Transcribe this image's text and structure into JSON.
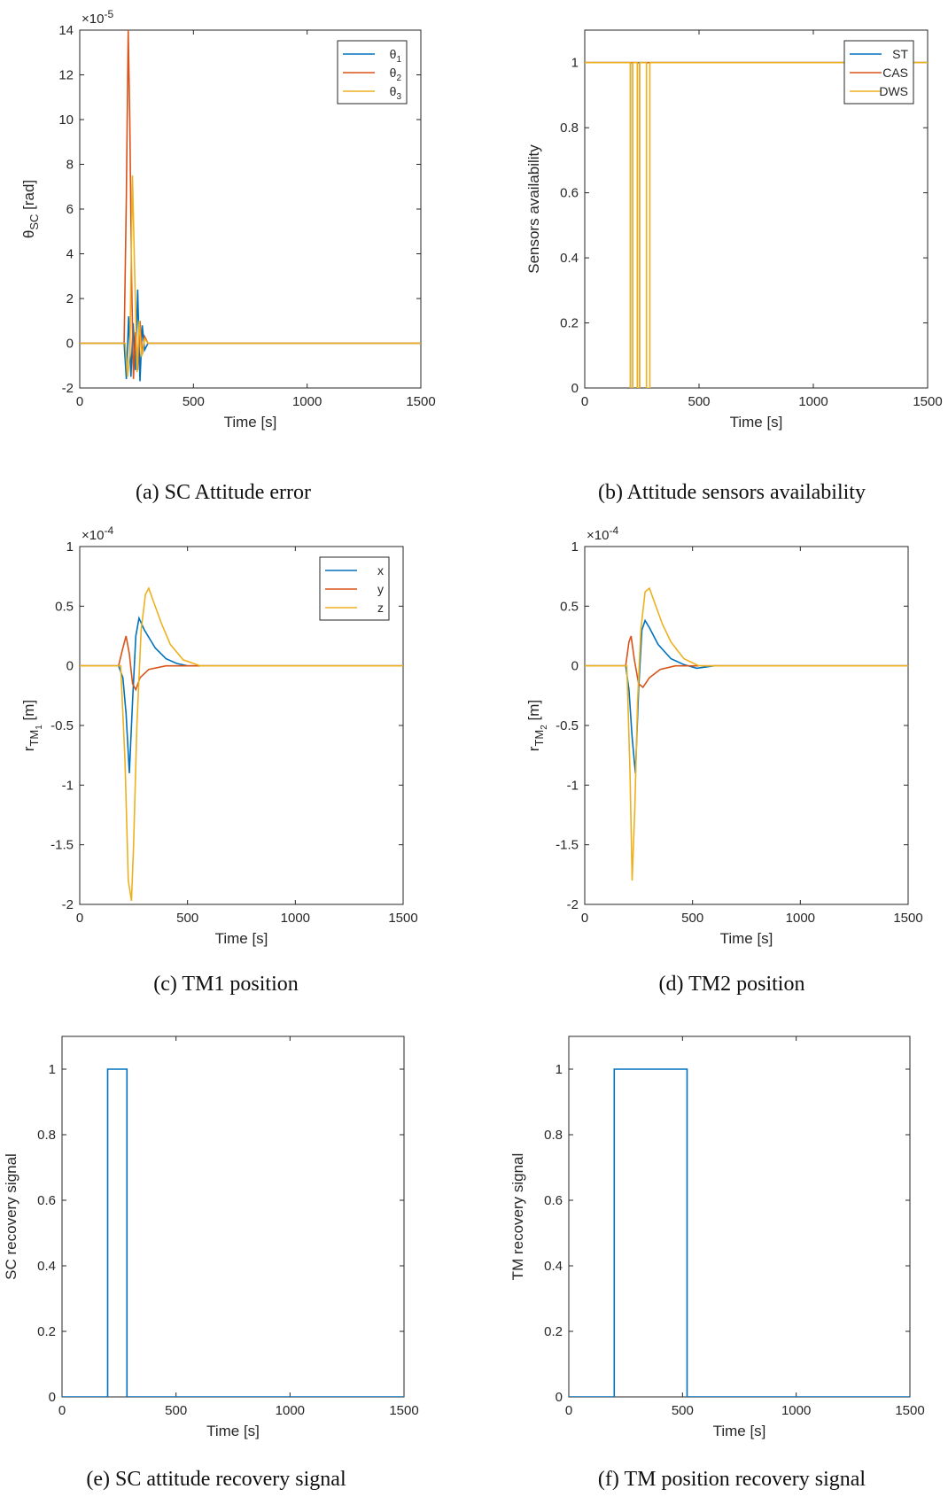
{
  "chart_data": [
    {
      "type": "line",
      "caption": "(a) SC Attitude error",
      "xlabel": "Time [s]",
      "ylabel": "θ",
      "ylabel_sub": "SC",
      "ylabel_suffix": " [rad]",
      "exponent_base": "×10",
      "exponent_power": "-5",
      "xlim": [
        0,
        1500
      ],
      "ylim": [
        -2,
        14
      ],
      "xticks": [
        "0",
        "500",
        "1000",
        "1500"
      ],
      "yticks": [
        "-2",
        "0",
        "2",
        "4",
        "6",
        "8",
        "10",
        "12",
        "14"
      ],
      "legend_position": "top-right",
      "series": [
        {
          "name": "θ",
          "name_sub": "1",
          "color": "#0072BD",
          "x": [
            0,
            195,
            205,
            215,
            225,
            235,
            245,
            255,
            265,
            275,
            285,
            300,
            400,
            1500
          ],
          "y": [
            0,
            0,
            -1.6,
            1.2,
            -1.5,
            0.9,
            -1.2,
            2.4,
            -1.7,
            0.8,
            -0.3,
            0,
            0,
            0
          ]
        },
        {
          "name": "θ",
          "name_sub": "2",
          "color": "#D95319",
          "x": [
            0,
            195,
            205,
            213,
            220,
            228,
            236,
            245,
            255,
            265,
            275,
            285,
            300,
            1500
          ],
          "y": [
            0,
            0,
            6.5,
            14,
            10,
            3,
            -1.6,
            0.5,
            -1.2,
            1.0,
            -0.5,
            0.3,
            0,
            0
          ]
        },
        {
          "name": "θ",
          "name_sub": "3",
          "color": "#EDB120",
          "x": [
            0,
            200,
            210,
            220,
            232,
            242,
            252,
            262,
            272,
            285,
            300,
            1500
          ],
          "y": [
            0,
            0,
            -1.5,
            -0.5,
            7.5,
            3,
            -1.3,
            1.0,
            -0.6,
            0.2,
            0,
            0
          ]
        }
      ]
    },
    {
      "type": "line",
      "caption": "(b) Attitude sensors availability",
      "xlabel": "Time [s]",
      "ylabel": "Sensors availability",
      "xlim": [
        0,
        1500
      ],
      "ylim": [
        0,
        1.1
      ],
      "xticks": [
        "0",
        "500",
        "1000",
        "1500"
      ],
      "yticks": [
        "0",
        "0.2",
        "0.4",
        "0.6",
        "0.8",
        "1"
      ],
      "legend_position": "top-right",
      "series": [
        {
          "name": "ST",
          "color": "#0072BD",
          "x": [
            0,
            200,
            200,
            210,
            210,
            1500
          ],
          "y": [
            1,
            1,
            0,
            0,
            1,
            1
          ]
        },
        {
          "name": "CAS",
          "color": "#D95319",
          "x": [
            0,
            230,
            230,
            240,
            240,
            1500
          ],
          "y": [
            1,
            1,
            0,
            0,
            1,
            1
          ]
        },
        {
          "name": "DWS",
          "color": "#EDB120",
          "x": [
            0,
            200,
            200,
            210,
            210,
            230,
            230,
            240,
            240,
            270,
            270,
            285,
            285,
            1500
          ],
          "y": [
            1,
            1,
            0,
            0,
            1,
            1,
            0,
            0,
            1,
            1,
            0,
            0,
            1,
            1
          ]
        }
      ]
    },
    {
      "type": "line",
      "caption": "(c) TM1 position",
      "xlabel": "Time [s]",
      "ylabel": "r",
      "ylabel_sub": "TM",
      "ylabel_subsub": "1",
      "ylabel_suffix": " [m]",
      "exponent_base": "×10",
      "exponent_power": "-4",
      "xlim": [
        0,
        1500
      ],
      "ylim": [
        -2,
        1
      ],
      "xticks": [
        "0",
        "500",
        "1000",
        "1500"
      ],
      "yticks": [
        "-2",
        "-1.5",
        "-1",
        "-0.5",
        "0",
        "0.5",
        "1"
      ],
      "legend_position": "top-right",
      "series": [
        {
          "name": "x",
          "color": "#0072BD",
          "x": [
            0,
            180,
            200,
            215,
            230,
            245,
            260,
            275,
            300,
            350,
            400,
            450,
            500,
            600,
            1500
          ],
          "y": [
            0,
            0,
            -0.1,
            -0.4,
            -0.9,
            -0.3,
            0.25,
            0.4,
            0.3,
            0.15,
            0.06,
            0.02,
            0,
            0,
            0
          ]
        },
        {
          "name": "y",
          "color": "#D95319",
          "x": [
            0,
            180,
            200,
            215,
            230,
            245,
            260,
            280,
            320,
            400,
            1500
          ],
          "y": [
            0,
            0,
            0.15,
            0.25,
            0.1,
            -0.15,
            -0.2,
            -0.1,
            -0.03,
            0,
            0
          ]
        },
        {
          "name": "z",
          "color": "#EDB120",
          "x": [
            0,
            190,
            210,
            225,
            240,
            250,
            265,
            285,
            305,
            320,
            340,
            380,
            420,
            480,
            560,
            620,
            1500
          ],
          "y": [
            0,
            0,
            -0.8,
            -1.8,
            -1.97,
            -1.5,
            -0.5,
            0.3,
            0.6,
            0.65,
            0.55,
            0.35,
            0.18,
            0.05,
            0,
            0,
            0
          ]
        }
      ]
    },
    {
      "type": "line",
      "caption": "(d) TM2 position",
      "xlabel": "Time [s]",
      "ylabel": "r",
      "ylabel_sub": "TM",
      "ylabel_subsub": "2",
      "ylabel_suffix": " [m]",
      "exponent_base": "×10",
      "exponent_power": "-4",
      "xlim": [
        0,
        1500
      ],
      "ylim": [
        -2,
        1
      ],
      "xticks": [
        "0",
        "500",
        "1000",
        "1500"
      ],
      "yticks": [
        "-2",
        "-1.5",
        "-1",
        "-0.5",
        "0",
        "0.5",
        "1"
      ],
      "series": [
        {
          "name": "x",
          "color": "#0072BD",
          "x": [
            0,
            190,
            205,
            220,
            235,
            250,
            265,
            280,
            300,
            340,
            400,
            460,
            520,
            600,
            1500
          ],
          "y": [
            0,
            0,
            -0.2,
            -0.6,
            -0.9,
            -0.2,
            0.3,
            0.38,
            0.32,
            0.18,
            0.06,
            0.01,
            -0.02,
            0,
            0
          ]
        },
        {
          "name": "y",
          "color": "#D95319",
          "x": [
            0,
            190,
            205,
            215,
            230,
            250,
            270,
            300,
            350,
            420,
            1500
          ],
          "y": [
            0,
            0,
            0.2,
            0.25,
            0.05,
            -0.15,
            -0.18,
            -0.1,
            -0.03,
            0,
            0
          ]
        },
        {
          "name": "z",
          "color": "#EDB120",
          "x": [
            0,
            195,
            210,
            220,
            232,
            245,
            260,
            280,
            300,
            320,
            360,
            400,
            460,
            530,
            620,
            1500
          ],
          "y": [
            0,
            0,
            -0.9,
            -1.8,
            -1.2,
            -0.3,
            0.3,
            0.62,
            0.65,
            0.55,
            0.35,
            0.2,
            0.06,
            0,
            0,
            0
          ]
        }
      ]
    },
    {
      "type": "line",
      "caption": "(e) SC attitude recovery signal",
      "xlabel": "Time [s]",
      "ylabel": "SC recovery signal",
      "xlim": [
        0,
        1500
      ],
      "ylim": [
        0,
        1.1
      ],
      "xticks": [
        "0",
        "500",
        "1000",
        "1500"
      ],
      "yticks": [
        "0",
        "0.2",
        "0.4",
        "0.6",
        "0.8",
        "1"
      ],
      "series": [
        {
          "color": "#0072BD",
          "x": [
            0,
            200,
            200,
            285,
            285,
            1500
          ],
          "y": [
            0,
            0,
            1,
            1,
            0,
            0
          ]
        }
      ]
    },
    {
      "type": "line",
      "caption": "(f) TM position recovery signal",
      "xlabel": "Time [s]",
      "ylabel": "TM recovery signal",
      "xlim": [
        0,
        1500
      ],
      "ylim": [
        0,
        1.1
      ],
      "xticks": [
        "0",
        "500",
        "1000",
        "1500"
      ],
      "yticks": [
        "0",
        "0.2",
        "0.4",
        "0.6",
        "0.8",
        "1"
      ],
      "series": [
        {
          "color": "#0072BD",
          "x": [
            0,
            200,
            200,
            520,
            520,
            1500
          ],
          "y": [
            0,
            0,
            1,
            1,
            0,
            0
          ]
        }
      ]
    }
  ]
}
